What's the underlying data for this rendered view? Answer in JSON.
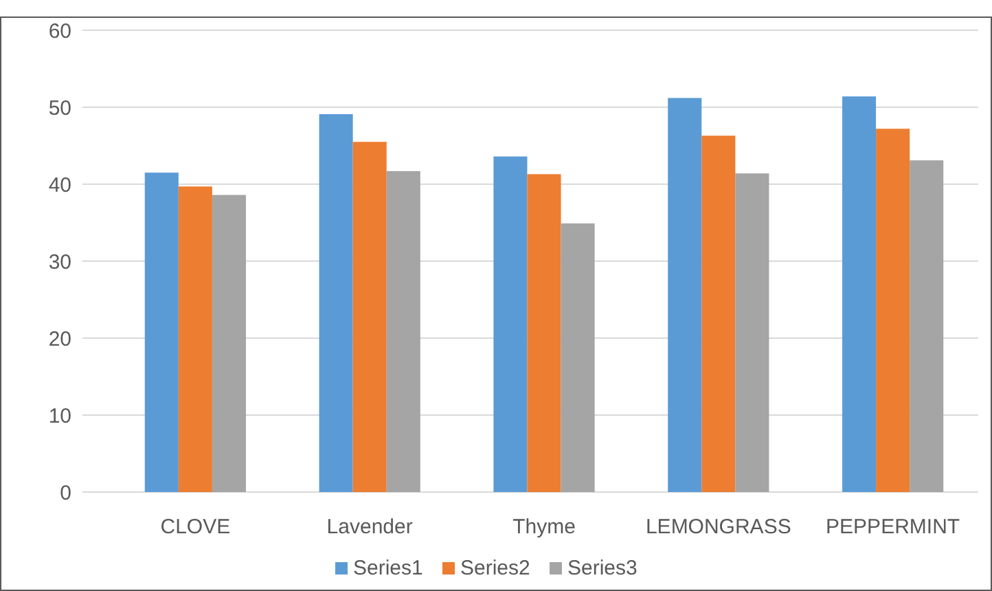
{
  "chart_data": {
    "type": "bar",
    "categories": [
      "CLOVE",
      "Lavender",
      "Thyme",
      "LEMONGRASS",
      "PEPPERMINT"
    ],
    "series": [
      {
        "name": "Series1",
        "color": "#5b9bd5",
        "values": [
          41.5,
          49.1,
          43.6,
          51.2,
          51.4
        ]
      },
      {
        "name": "Series2",
        "color": "#ed7d31",
        "values": [
          39.7,
          45.5,
          41.3,
          46.3,
          47.2
        ]
      },
      {
        "name": "Series3",
        "color": "#a5a5a5",
        "values": [
          38.6,
          41.7,
          34.9,
          41.4,
          43.1
        ]
      }
    ],
    "ylim": [
      0,
      60
    ],
    "yticks": [
      0,
      10,
      20,
      30,
      40,
      50,
      60
    ],
    "grid": "y",
    "legend": "bottom"
  }
}
